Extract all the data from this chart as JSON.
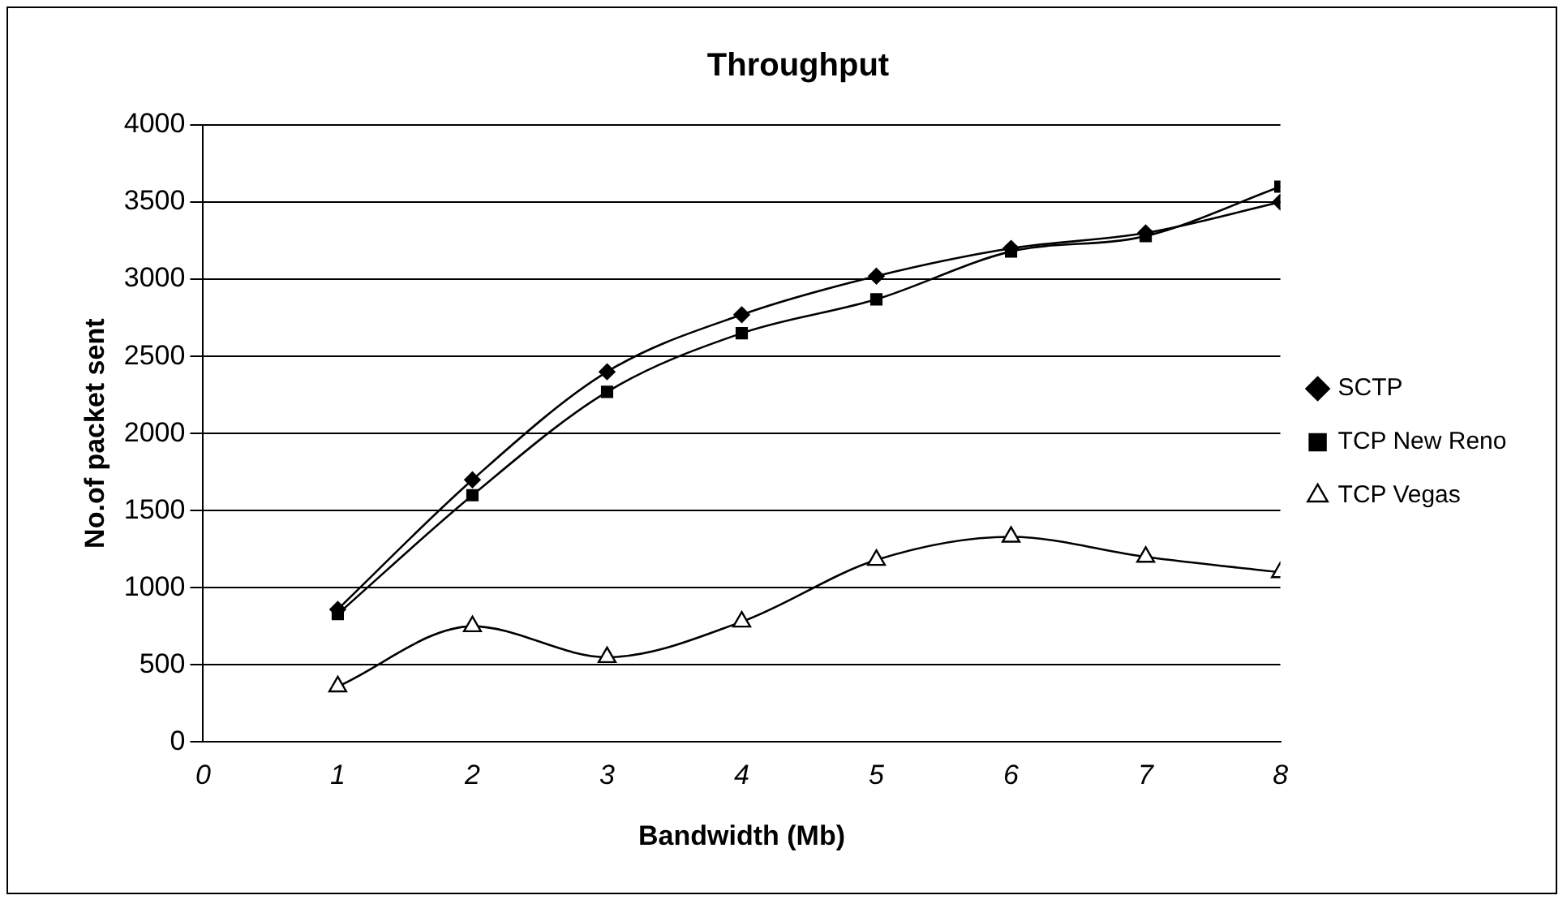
{
  "chart_data": {
    "type": "line",
    "title": "Throughput",
    "xlabel": "Bandwidth (Mb)",
    "ylabel": "No.of packet sent",
    "x": [
      1,
      2,
      3,
      4,
      5,
      6,
      7,
      8
    ],
    "xlim": [
      0,
      8
    ],
    "xticks": [
      0,
      1,
      2,
      3,
      4,
      5,
      6,
      7,
      8
    ],
    "ylim": [
      0,
      4000
    ],
    "yticks": [
      0,
      500,
      1000,
      1500,
      2000,
      2500,
      3000,
      3500,
      4000
    ],
    "grid": "y",
    "legend": "right",
    "series": [
      {
        "name": "SCTP",
        "color": "#000000",
        "marker": "diamond",
        "values": [
          860,
          1700,
          2400,
          2770,
          3020,
          3200,
          3300,
          3500
        ]
      },
      {
        "name": "TCP New Reno",
        "color": "#000000",
        "marker": "square",
        "values": [
          830,
          1600,
          2270,
          2650,
          2870,
          3180,
          3280,
          3600
        ]
      },
      {
        "name": "TCP Vegas",
        "color": "#000000",
        "marker": "triangle",
        "values": [
          360,
          750,
          550,
          780,
          1180,
          1330,
          1200,
          1100
        ]
      }
    ]
  }
}
